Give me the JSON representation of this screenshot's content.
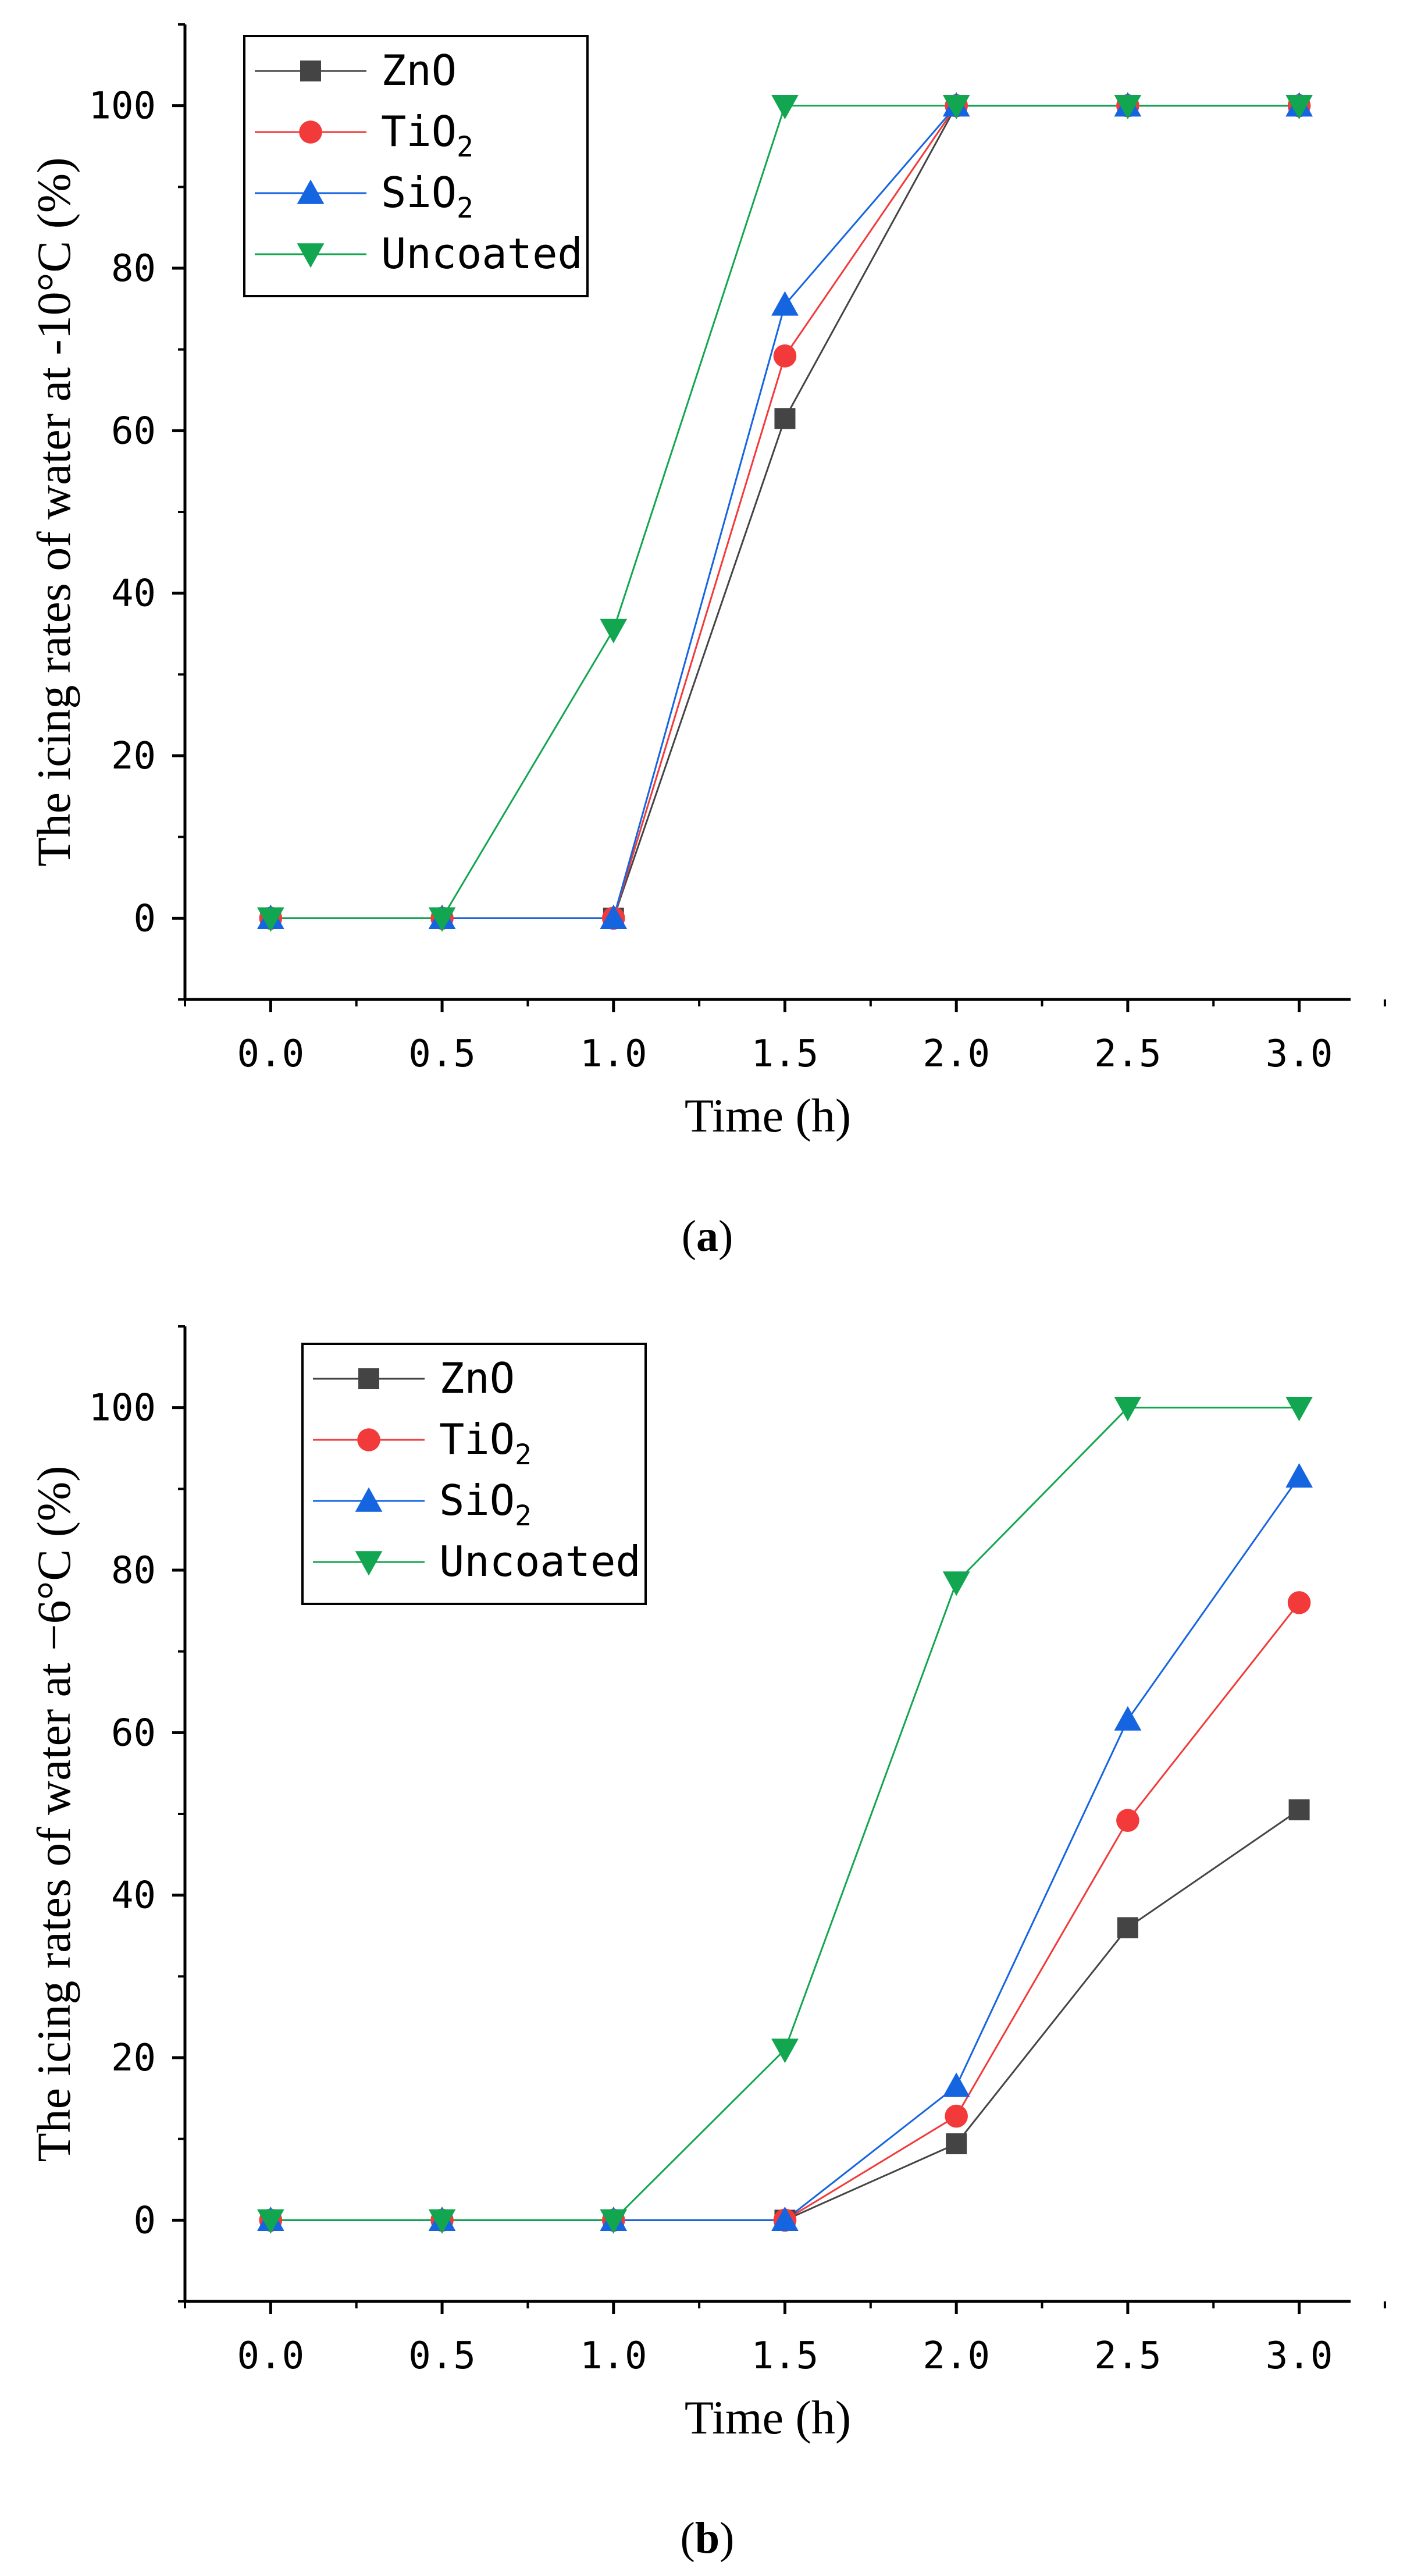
{
  "chart_data": [
    {
      "type": "line",
      "panel_label": "a",
      "xlabel": "Time (h)",
      "ylabel": "The icing rates of water at -10°C (%)",
      "x": [
        0.0,
        0.5,
        1.0,
        1.5,
        2.0,
        2.5,
        3.0
      ],
      "xlim": [
        -0.25,
        3.15
      ],
      "ylim": [
        -10,
        110
      ],
      "xticks": [
        "0.0",
        "0.5",
        "1.0",
        "1.5",
        "2.0",
        "2.5",
        "3.0"
      ],
      "yticks": [
        "0",
        "20",
        "40",
        "60",
        "80",
        "100"
      ],
      "legend_position": "top-left",
      "series": [
        {
          "name": "ZnO",
          "label_main": "ZnO",
          "label_sub": "",
          "marker": "square",
          "color": "#444444",
          "values": [
            0,
            0,
            0,
            61.5,
            100,
            100,
            100
          ]
        },
        {
          "name": "TiO2",
          "label_main": "TiO",
          "label_sub": "2",
          "marker": "circle",
          "color": "#f23a3a",
          "values": [
            0,
            0,
            0,
            69.2,
            100,
            100,
            100
          ]
        },
        {
          "name": "SiO2",
          "label_main": "SiO",
          "label_sub": "2",
          "marker": "triangle-up",
          "color": "#1565e0",
          "values": [
            0,
            0,
            0,
            75.5,
            100,
            100,
            100
          ]
        },
        {
          "name": "Uncoated",
          "label_main": "Uncoated",
          "label_sub": "",
          "marker": "triangle-down",
          "color": "#12a650",
          "values": [
            0,
            0,
            35.5,
            100,
            100,
            100,
            100
          ]
        }
      ]
    },
    {
      "type": "line",
      "panel_label": "b",
      "xlabel": "Time (h)",
      "ylabel": "The icing rates of water at −6°C (%)",
      "x": [
        0.0,
        0.5,
        1.0,
        1.5,
        2.0,
        2.5,
        3.0
      ],
      "xlim": [
        -0.25,
        3.15
      ],
      "ylim": [
        -10,
        110
      ],
      "xticks": [
        "0.0",
        "0.5",
        "1.0",
        "1.5",
        "2.0",
        "2.5",
        "3.0"
      ],
      "yticks": [
        "0",
        "20",
        "40",
        "60",
        "80",
        "100"
      ],
      "legend_position": "top-left",
      "series": [
        {
          "name": "ZnO",
          "label_main": "ZnO",
          "label_sub": "",
          "marker": "square",
          "color": "#444444",
          "values": [
            0,
            0,
            0,
            0,
            9.4,
            36,
            50.5
          ]
        },
        {
          "name": "TiO2",
          "label_main": "TiO",
          "label_sub": "2",
          "marker": "circle",
          "color": "#f23a3a",
          "values": [
            0,
            0,
            0,
            0,
            12.8,
            49.2,
            76
          ]
        },
        {
          "name": "SiO2",
          "label_main": "SiO",
          "label_sub": "2",
          "marker": "triangle-up",
          "color": "#1565e0",
          "values": [
            0,
            0,
            0,
            0,
            16.5,
            61.6,
            91.5
          ]
        },
        {
          "name": "Uncoated",
          "label_main": "Uncoated",
          "label_sub": "",
          "marker": "triangle-down",
          "color": "#12a650",
          "values": [
            0,
            0,
            0,
            21,
            78.5,
            100,
            100
          ]
        }
      ]
    }
  ]
}
